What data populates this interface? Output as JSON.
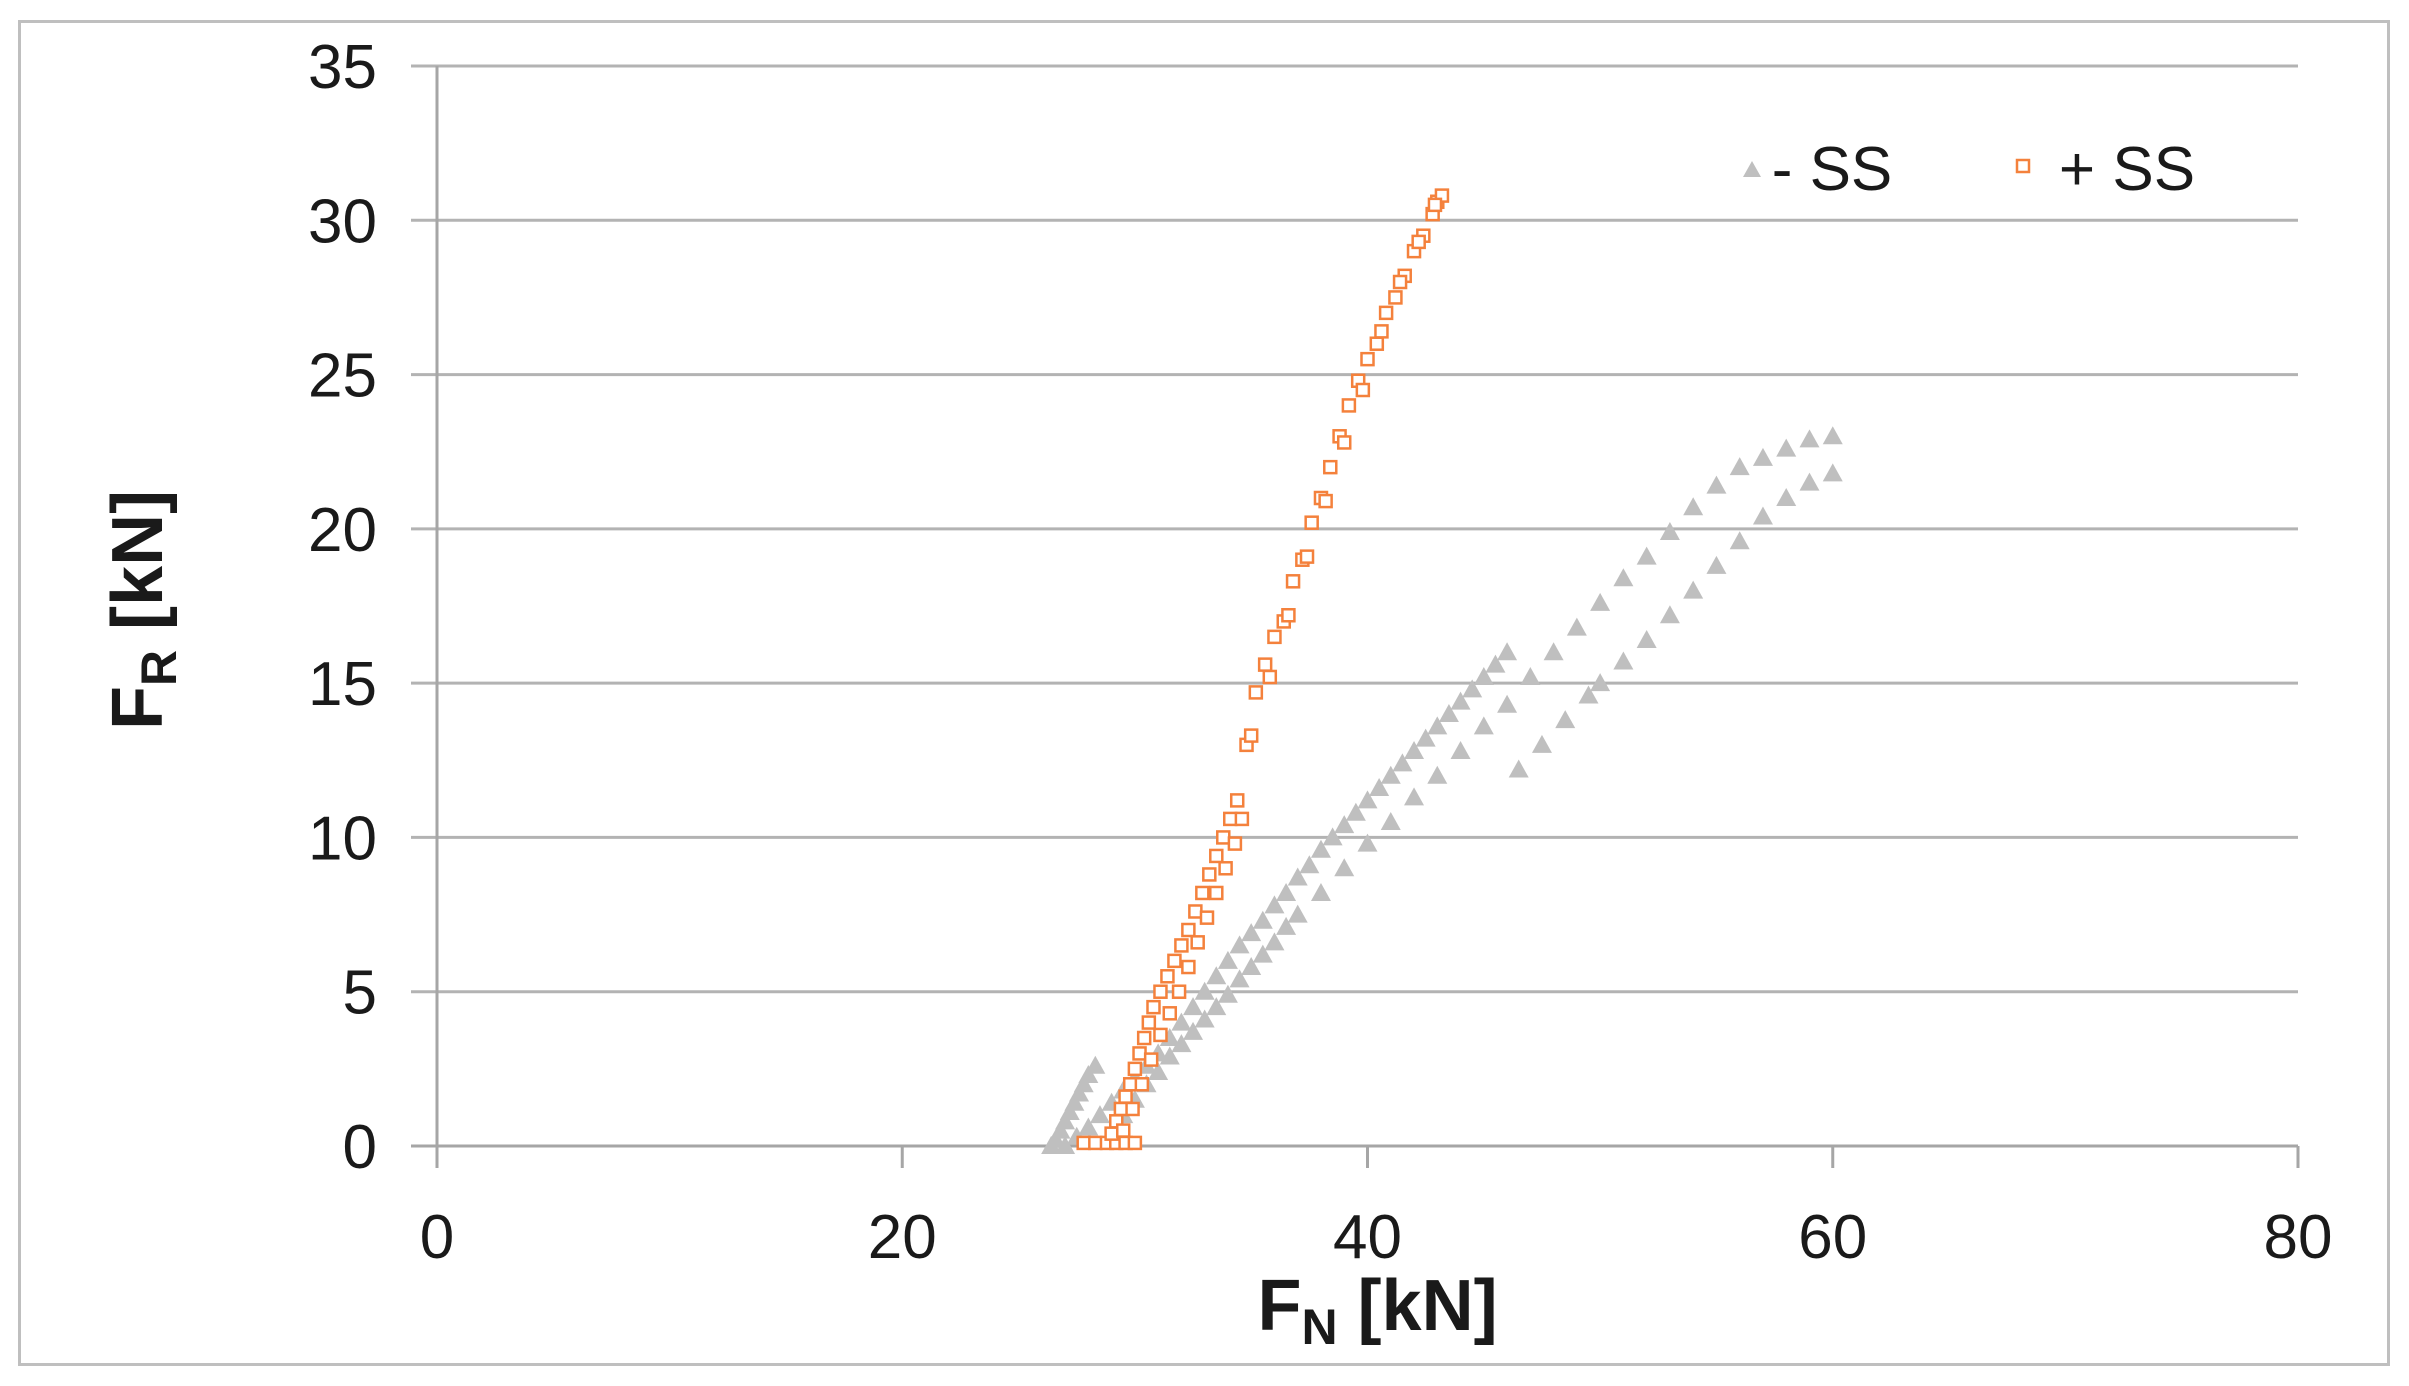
{
  "chart_data": {
    "type": "scatter",
    "title": "",
    "xlabel": {
      "main": "F",
      "sub": "N",
      "unit": " [kN]"
    },
    "ylabel": {
      "main": "F",
      "sub": "R",
      "unit": " [kN]"
    },
    "xlim": [
      0,
      80
    ],
    "ylim": [
      0,
      35
    ],
    "xticks": [
      0,
      20,
      40,
      60,
      80
    ],
    "yticks": [
      0,
      5,
      10,
      15,
      20,
      25,
      30,
      35
    ],
    "grid": "horizontal",
    "legend_position": "top-right",
    "series": [
      {
        "name": "- SS",
        "marker": "triangle",
        "color": "#bfbfbf",
        "points": [
          [
            26.4,
            0.0
          ],
          [
            26.6,
            0.2
          ],
          [
            26.8,
            0.5
          ],
          [
            27.0,
            0.8
          ],
          [
            27.2,
            1.1
          ],
          [
            27.4,
            1.4
          ],
          [
            27.6,
            1.7
          ],
          [
            27.8,
            2.0
          ],
          [
            28.0,
            2.3
          ],
          [
            28.3,
            2.6
          ],
          [
            27.0,
            0.0
          ],
          [
            27.5,
            0.3
          ],
          [
            28.0,
            0.6
          ],
          [
            28.5,
            1.0
          ],
          [
            29.0,
            1.4
          ],
          [
            29.5,
            1.8
          ],
          [
            30.0,
            2.2
          ],
          [
            30.5,
            2.6
          ],
          [
            31.0,
            3.0
          ],
          [
            31.5,
            3.5
          ],
          [
            32.0,
            4.0
          ],
          [
            32.5,
            4.5
          ],
          [
            33.0,
            5.0
          ],
          [
            33.5,
            5.5
          ],
          [
            34.0,
            6.0
          ],
          [
            34.5,
            6.5
          ],
          [
            35.0,
            6.9
          ],
          [
            35.5,
            7.3
          ],
          [
            36.0,
            7.8
          ],
          [
            36.5,
            8.2
          ],
          [
            37.0,
            8.7
          ],
          [
            37.5,
            9.1
          ],
          [
            38.0,
            9.6
          ],
          [
            38.5,
            10.0
          ],
          [
            39.0,
            10.4
          ],
          [
            39.5,
            10.8
          ],
          [
            40.0,
            11.2
          ],
          [
            40.5,
            11.6
          ],
          [
            41.0,
            12.0
          ],
          [
            41.5,
            12.4
          ],
          [
            42.0,
            12.8
          ],
          [
            42.5,
            13.2
          ],
          [
            43.0,
            13.6
          ],
          [
            43.5,
            14.0
          ],
          [
            44.0,
            14.4
          ],
          [
            44.5,
            14.8
          ],
          [
            45.0,
            15.2
          ],
          [
            45.5,
            15.6
          ],
          [
            46.0,
            16.0
          ],
          [
            29.5,
            1.0
          ],
          [
            30.0,
            1.5
          ],
          [
            30.5,
            2.0
          ],
          [
            31.0,
            2.4
          ],
          [
            31.5,
            2.9
          ],
          [
            32.0,
            3.3
          ],
          [
            32.5,
            3.7
          ],
          [
            33.0,
            4.1
          ],
          [
            33.5,
            4.5
          ],
          [
            34.0,
            4.9
          ],
          [
            34.5,
            5.4
          ],
          [
            35.0,
            5.8
          ],
          [
            35.5,
            6.2
          ],
          [
            36.0,
            6.6
          ],
          [
            36.5,
            7.1
          ],
          [
            37.0,
            7.5
          ],
          [
            38.0,
            8.2
          ],
          [
            39.0,
            9.0
          ],
          [
            40.0,
            9.8
          ],
          [
            41.0,
            10.5
          ],
          [
            42.0,
            11.3
          ],
          [
            43.0,
            12.0
          ],
          [
            44.0,
            12.8
          ],
          [
            45.0,
            13.6
          ],
          [
            46.0,
            14.3
          ],
          [
            47.0,
            15.2
          ],
          [
            48.0,
            16.0
          ],
          [
            49.0,
            16.8
          ],
          [
            50.0,
            17.6
          ],
          [
            51.0,
            18.4
          ],
          [
            52.0,
            19.1
          ],
          [
            53.0,
            19.9
          ],
          [
            54.0,
            20.7
          ],
          [
            55.0,
            21.4
          ],
          [
            56.0,
            22.0
          ],
          [
            57.0,
            22.3
          ],
          [
            58.0,
            22.6
          ],
          [
            59.0,
            22.9
          ],
          [
            60.0,
            23.0
          ],
          [
            50.0,
            15.0
          ],
          [
            51.0,
            15.7
          ],
          [
            52.0,
            16.4
          ],
          [
            53.0,
            17.2
          ],
          [
            54.0,
            18.0
          ],
          [
            55.0,
            18.8
          ],
          [
            56.0,
            19.6
          ],
          [
            57.0,
            20.4
          ],
          [
            58.0,
            21.0
          ],
          [
            59.0,
            21.5
          ],
          [
            60.0,
            21.8
          ],
          [
            46.5,
            12.2
          ],
          [
            47.5,
            13.0
          ],
          [
            48.5,
            13.8
          ],
          [
            49.5,
            14.6
          ]
        ]
      },
      {
        "name": "+ SS",
        "marker": "square",
        "color": "#f4813c",
        "points": [
          [
            27.8,
            0.1
          ],
          [
            28.3,
            0.1
          ],
          [
            28.8,
            0.1
          ],
          [
            29.2,
            0.1
          ],
          [
            29.6,
            0.1
          ],
          [
            30.0,
            0.1
          ],
          [
            29.0,
            0.4
          ],
          [
            29.2,
            0.8
          ],
          [
            29.4,
            1.2
          ],
          [
            29.6,
            1.6
          ],
          [
            29.8,
            2.0
          ],
          [
            30.0,
            2.5
          ],
          [
            30.2,
            3.0
          ],
          [
            30.4,
            3.5
          ],
          [
            30.6,
            4.0
          ],
          [
            30.8,
            4.5
          ],
          [
            31.1,
            5.0
          ],
          [
            31.4,
            5.5
          ],
          [
            31.7,
            6.0
          ],
          [
            32.0,
            6.5
          ],
          [
            32.3,
            7.0
          ],
          [
            32.6,
            7.6
          ],
          [
            32.9,
            8.2
          ],
          [
            33.2,
            8.8
          ],
          [
            33.5,
            9.4
          ],
          [
            33.8,
            10.0
          ],
          [
            34.1,
            10.6
          ],
          [
            34.4,
            11.2
          ],
          [
            29.5,
            0.5
          ],
          [
            29.9,
            1.2
          ],
          [
            30.3,
            2.0
          ],
          [
            30.7,
            2.8
          ],
          [
            31.1,
            3.6
          ],
          [
            31.5,
            4.3
          ],
          [
            31.9,
            5.0
          ],
          [
            32.3,
            5.8
          ],
          [
            32.7,
            6.6
          ],
          [
            33.1,
            7.4
          ],
          [
            33.5,
            8.2
          ],
          [
            33.9,
            9.0
          ],
          [
            34.3,
            9.8
          ],
          [
            34.6,
            10.6
          ],
          [
            34.8,
            13.0
          ],
          [
            35.2,
            14.7
          ],
          [
            35.6,
            15.6
          ],
          [
            36.0,
            16.5
          ],
          [
            36.4,
            17.0
          ],
          [
            36.8,
            18.3
          ],
          [
            37.2,
            19.0
          ],
          [
            37.6,
            20.2
          ],
          [
            38.0,
            21.0
          ],
          [
            38.4,
            22.0
          ],
          [
            38.8,
            23.0
          ],
          [
            39.2,
            24.0
          ],
          [
            39.6,
            24.8
          ],
          [
            40.0,
            25.5
          ],
          [
            40.4,
            26.0
          ],
          [
            40.8,
            27.0
          ],
          [
            41.2,
            27.5
          ],
          [
            41.6,
            28.2
          ],
          [
            42.0,
            29.0
          ],
          [
            42.4,
            29.5
          ],
          [
            42.8,
            30.2
          ],
          [
            43.0,
            30.6
          ],
          [
            43.2,
            30.8
          ],
          [
            35.0,
            13.3
          ],
          [
            35.8,
            15.2
          ],
          [
            36.6,
            17.2
          ],
          [
            37.4,
            19.1
          ],
          [
            38.2,
            20.9
          ],
          [
            39.0,
            22.8
          ],
          [
            39.8,
            24.5
          ],
          [
            40.6,
            26.4
          ],
          [
            41.4,
            28.0
          ],
          [
            42.2,
            29.3
          ],
          [
            42.9,
            30.5
          ]
        ]
      }
    ]
  }
}
